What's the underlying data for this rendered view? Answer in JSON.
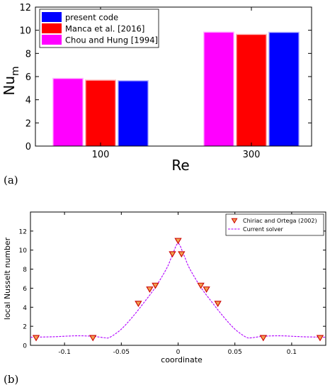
{
  "chart_data": [
    {
      "type": "bar",
      "categories": [
        "100",
        "300"
      ],
      "series": [
        {
          "name": "Chou and Hung [1994]",
          "values": [
            5.8,
            9.8
          ],
          "color": "#ff00ff"
        },
        {
          "name": "Manca et al. [2016]",
          "values": [
            5.65,
            9.6
          ],
          "color": "#ff0000"
        },
        {
          "name": "present code",
          "values": [
            5.6,
            9.78
          ],
          "color": "#0000ff"
        }
      ],
      "legend_order": [
        "present code",
        "Manca et al. [2016]",
        "Chou and Hung [1994]"
      ],
      "title": "",
      "xlabel": "Re",
      "ylabel": "Nu",
      "ylabel_sub": "m",
      "ylim": [
        0,
        12
      ],
      "yticks": [
        "0",
        "2",
        "4",
        "6",
        "8",
        "10",
        "12"
      ],
      "legend_position": "top-left",
      "panel_label": "(a)"
    },
    {
      "type": "scatter",
      "title": "",
      "xlabel": "coordinate",
      "ylabel": "local Nusselt number",
      "xlim": [
        -0.13,
        0.13
      ],
      "ylim": [
        0,
        14
      ],
      "xticks": [
        "-0.1",
        "-0.05",
        "0",
        "0.05",
        "0.1"
      ],
      "yticks": [
        "0",
        "2",
        "4",
        "6",
        "8",
        "10",
        "12"
      ],
      "grid": false,
      "legend_position": "top-right",
      "panel_label": "(b)",
      "series": [
        {
          "name": "Chiriac and Ortega (2002)",
          "marker": "triangle-down",
          "color": "#cc0000",
          "fill": "#f0a050",
          "x": [
            -0.125,
            -0.075,
            -0.035,
            -0.025,
            -0.02,
            -0.005,
            0.0,
            0.003,
            0.02,
            0.025,
            0.035,
            0.075,
            0.125
          ],
          "y": [
            0.8,
            0.8,
            4.4,
            5.9,
            6.3,
            9.6,
            11.0,
            9.6,
            6.3,
            5.9,
            4.4,
            0.8,
            0.8
          ]
        },
        {
          "name": "Current solver",
          "line": "dashed",
          "color": "#b000ff",
          "x": [
            -0.13,
            -0.11,
            -0.09,
            -0.075,
            -0.065,
            -0.06,
            -0.05,
            -0.04,
            -0.03,
            -0.02,
            -0.01,
            -0.005,
            0.0,
            0.005,
            0.01,
            0.02,
            0.03,
            0.04,
            0.05,
            0.06,
            0.065,
            0.075,
            0.09,
            0.11,
            0.13
          ],
          "y": [
            0.85,
            0.9,
            1.0,
            0.95,
            0.8,
            0.85,
            1.7,
            3.0,
            4.5,
            6.1,
            8.1,
            9.5,
            10.7,
            9.5,
            8.1,
            6.1,
            4.5,
            3.0,
            1.7,
            0.85,
            0.8,
            0.95,
            1.0,
            0.9,
            0.85
          ]
        }
      ]
    }
  ]
}
